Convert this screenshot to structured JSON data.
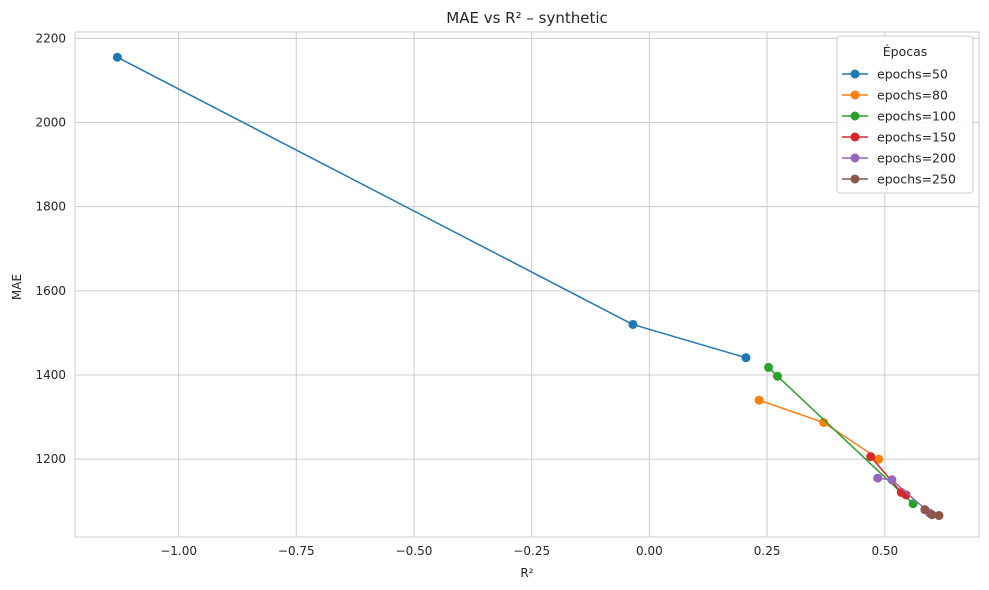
{
  "chart_data": {
    "type": "line",
    "title": "MAE vs R² – synthetic",
    "xlabel": "R²",
    "ylabel": "MAE",
    "xlim": [
      -1.22,
      0.7
    ],
    "ylim": [
      1015,
      2215
    ],
    "xticks": [
      -1.0,
      -0.75,
      -0.5,
      -0.25,
      0.0,
      0.25,
      0.5
    ],
    "xtick_labels": [
      "−1.00",
      "−0.75",
      "−0.50",
      "−0.25",
      "0.00",
      "0.25",
      "0.50"
    ],
    "yticks": [
      1200,
      1400,
      1600,
      1800,
      2000,
      2200
    ],
    "ytick_labels": [
      "1200",
      "1400",
      "1600",
      "1800",
      "2000",
      "2200"
    ],
    "grid": true,
    "legend": {
      "title": "Épocas",
      "placement": "top-right"
    },
    "series": [
      {
        "name": "epochs=50",
        "color": "#1f77b4",
        "x": [
          -1.13,
          -0.035,
          0.205
        ],
        "y": [
          2155,
          1520,
          1441
        ]
      },
      {
        "name": "epochs=80",
        "color": "#ff7f0e",
        "x": [
          0.233,
          0.37,
          0.487
        ],
        "y": [
          1340,
          1287,
          1200
        ]
      },
      {
        "name": "epochs=100",
        "color": "#2ca02c",
        "x": [
          0.253,
          0.272,
          0.56
        ],
        "y": [
          1418,
          1397,
          1094
        ]
      },
      {
        "name": "epochs=150",
        "color": "#d62728",
        "x": [
          0.47,
          0.535,
          0.545
        ],
        "y": [
          1206,
          1121,
          1115
        ]
      },
      {
        "name": "epochs=200",
        "color": "#9467bd",
        "x": [
          0.485,
          0.515,
          0.595
        ],
        "y": [
          1155,
          1151,
          1072
        ]
      },
      {
        "name": "epochs=250",
        "color": "#8c564b",
        "x": [
          0.585,
          0.6,
          0.615
        ],
        "y": [
          1080,
          1068,
          1066
        ]
      }
    ]
  }
}
